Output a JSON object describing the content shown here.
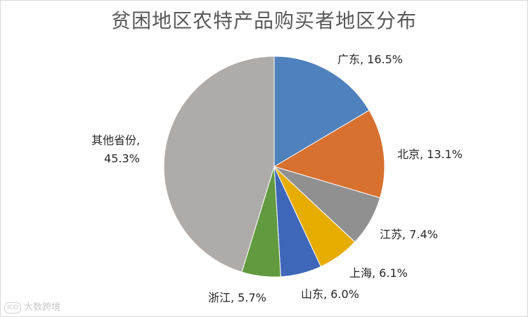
{
  "chart_data": {
    "type": "pie",
    "title": "贫困地区农特产品购买者地区分布",
    "legend": "none",
    "slices": [
      {
        "name": "广东",
        "value": 16.5,
        "label": "广东, 16.5%",
        "color": "#4f81bd"
      },
      {
        "name": "北京",
        "value": 13.1,
        "label": "北京, 13.1%",
        "color": "#d8702f"
      },
      {
        "name": "江苏",
        "value": 7.4,
        "label": "江苏, 7.4%",
        "color": "#909090"
      },
      {
        "name": "上海",
        "value": 6.1,
        "label": "上海, 6.1%",
        "color": "#e6ac00"
      },
      {
        "name": "山东",
        "value": 6.0,
        "label": "山东, 6.0%",
        "color": "#3f67b9"
      },
      {
        "name": "浙江",
        "value": 5.7,
        "label": "浙江, 5.7%",
        "color": "#629a3f"
      },
      {
        "name": "其他省份",
        "value": 45.3,
        "label_line1": "其他省份,",
        "label_line2": "45.3%",
        "color": "#afaba8"
      }
    ]
  },
  "watermark": {
    "icon_text": "ICO",
    "text": "大数跨境"
  }
}
